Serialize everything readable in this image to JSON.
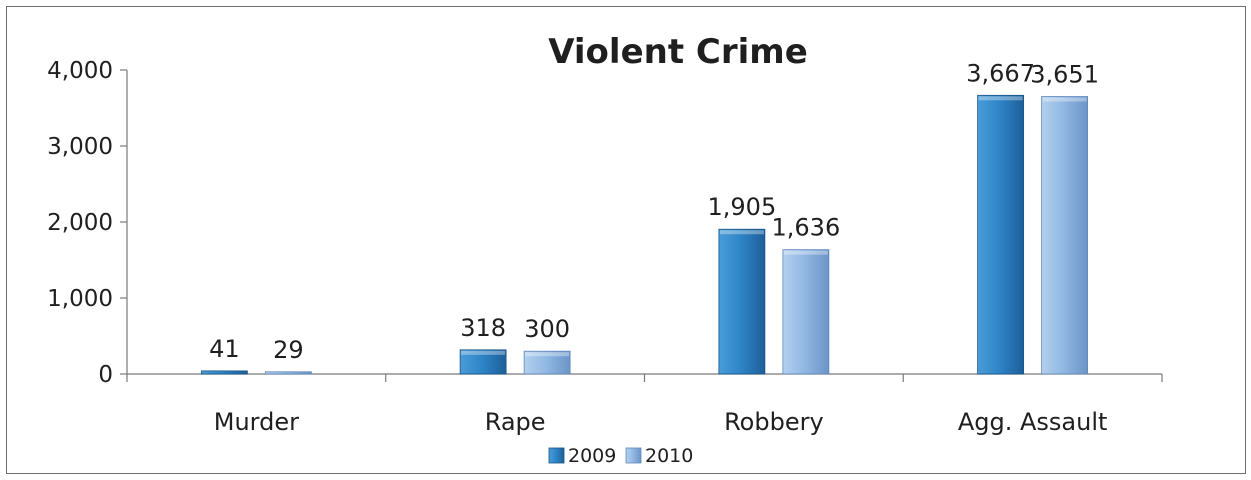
{
  "chart_data": {
    "type": "bar",
    "title": "Violent Crime",
    "categories": [
      "Murder",
      "Rape",
      "Robbery",
      "Agg. Assault"
    ],
    "series": [
      {
        "name": "2009",
        "values": [
          41,
          318,
          1905,
          3667
        ],
        "labels": [
          "41",
          "318",
          "1,905",
          "3,667"
        ],
        "color": "#2b7dbd"
      },
      {
        "name": "2010",
        "values": [
          29,
          300,
          1636,
          3651
        ],
        "labels": [
          "29",
          "300",
          "1,636",
          "3,651"
        ],
        "color": "#8fb6e0"
      }
    ],
    "yticks": [
      0,
      1000,
      2000,
      3000,
      4000
    ],
    "ytick_labels": [
      "0",
      "1,000",
      "2,000",
      "3,000",
      "4,000"
    ],
    "ylim": [
      0,
      4000
    ],
    "legend_position": "bottom",
    "grid": false
  }
}
